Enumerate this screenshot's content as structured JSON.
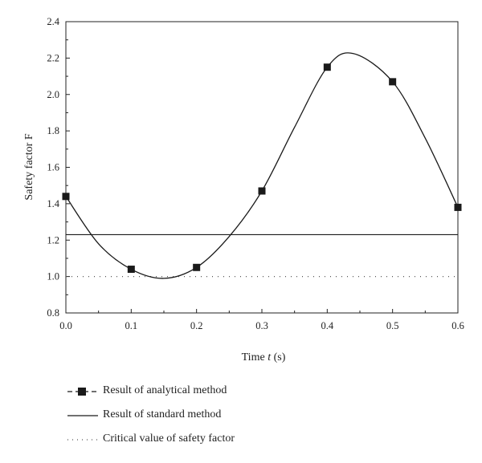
{
  "chart_data": {
    "type": "line",
    "xlabel_main": "Time",
    "xlabel_var": "t",
    "xlabel_unit": "(s)",
    "ylabel": "Safety factor F",
    "xlim": [
      0.0,
      0.6
    ],
    "ylim": [
      0.8,
      2.4
    ],
    "x_ticks": [
      "0.0",
      "0.1",
      "0.2",
      "0.3",
      "0.4",
      "0.5",
      "0.6"
    ],
    "y_ticks": [
      "0.8",
      "1.0",
      "1.2",
      "1.4",
      "1.6",
      "1.8",
      "2.0",
      "2.2",
      "2.4"
    ],
    "grid": false,
    "legend_position": "below",
    "series": [
      {
        "name": "Result of analytical method",
        "style": "line-with-square-markers",
        "color": "#1a1a1a",
        "points": [
          {
            "x": 0.0,
            "y": 1.44
          },
          {
            "x": 0.1,
            "y": 1.04
          },
          {
            "x": 0.2,
            "y": 1.05
          },
          {
            "x": 0.3,
            "y": 1.47
          },
          {
            "x": 0.4,
            "y": 2.15
          },
          {
            "x": 0.5,
            "y": 2.07
          },
          {
            "x": 0.6,
            "y": 1.38
          }
        ],
        "curve": [
          {
            "x": 0.0,
            "y": 1.44
          },
          {
            "x": 0.05,
            "y": 1.18
          },
          {
            "x": 0.1,
            "y": 1.04
          },
          {
            "x": 0.15,
            "y": 0.99
          },
          {
            "x": 0.2,
            "y": 1.05
          },
          {
            "x": 0.25,
            "y": 1.22
          },
          {
            "x": 0.3,
            "y": 1.47
          },
          {
            "x": 0.35,
            "y": 1.82
          },
          {
            "x": 0.4,
            "y": 2.15
          },
          {
            "x": 0.44,
            "y": 2.225
          },
          {
            "x": 0.5,
            "y": 2.07
          },
          {
            "x": 0.55,
            "y": 1.76
          },
          {
            "x": 0.6,
            "y": 1.38
          }
        ]
      },
      {
        "name": "Result of standard method",
        "style": "solid-line",
        "color": "#1a1a1a",
        "points": [
          {
            "x": 0.0,
            "y": 1.23
          },
          {
            "x": 0.6,
            "y": 1.23
          }
        ]
      },
      {
        "name": "Critical value of safety factor",
        "style": "dotted-line",
        "color": "#555555",
        "points": [
          {
            "x": 0.0,
            "y": 1.0
          },
          {
            "x": 0.6,
            "y": 1.0
          }
        ]
      }
    ]
  }
}
